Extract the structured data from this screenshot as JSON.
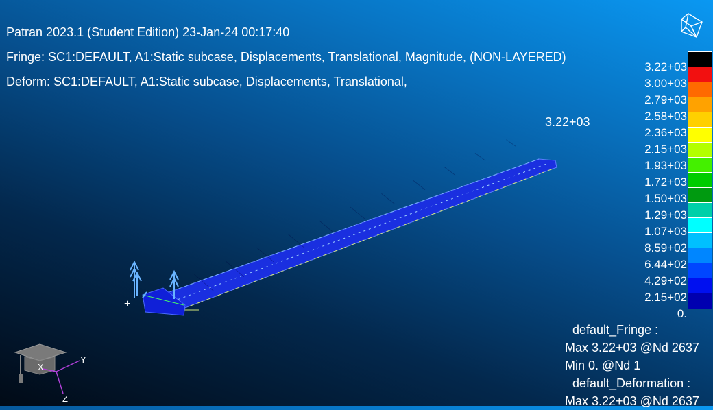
{
  "header": {
    "title": "Patran 2023.1  (Student Edition) 23-Jan-24 00:17:40",
    "fringe": "Fringe: SC1:DEFAULT, A1:Static subcase, Displacements, Translational, Magnitude, (NON-LAYERED)",
    "deform": "Deform: SC1:DEFAULT, A1:Static subcase, Displacements, Translational,"
  },
  "viewport": {
    "max_marker": "3.22+03",
    "origin_marker": "+"
  },
  "legend": {
    "colors": [
      "#000000",
      "#f21010",
      "#ff6a00",
      "#ffa200",
      "#ffd000",
      "#ffff00",
      "#b4ff00",
      "#44f000",
      "#00cc00",
      "#009a10",
      "#00d0a8",
      "#00ffff",
      "#00c0ff",
      "#0086ff",
      "#0046ff",
      "#0010f0",
      "#0000b0"
    ],
    "labels": [
      "3.22+03",
      "3.00+03",
      "2.79+03",
      "2.58+03",
      "2.36+03",
      "2.15+03",
      "1.93+03",
      "1.72+03",
      "1.50+03",
      "1.29+03",
      "1.07+03",
      "8.59+02",
      "6.44+02",
      "4.29+02",
      "2.15+02",
      "0."
    ]
  },
  "summary": {
    "fringe_title": "default_Fringe :",
    "fringe_max": "Max 3.22+03 @Nd 2637",
    "fringe_min": "Min  0. @Nd 1",
    "deform_title": "default_Deformation :",
    "deform_max": "Max 3.22+03 @Nd 2637"
  },
  "axes": {
    "x": "X",
    "y": "Y",
    "z": "Z"
  }
}
